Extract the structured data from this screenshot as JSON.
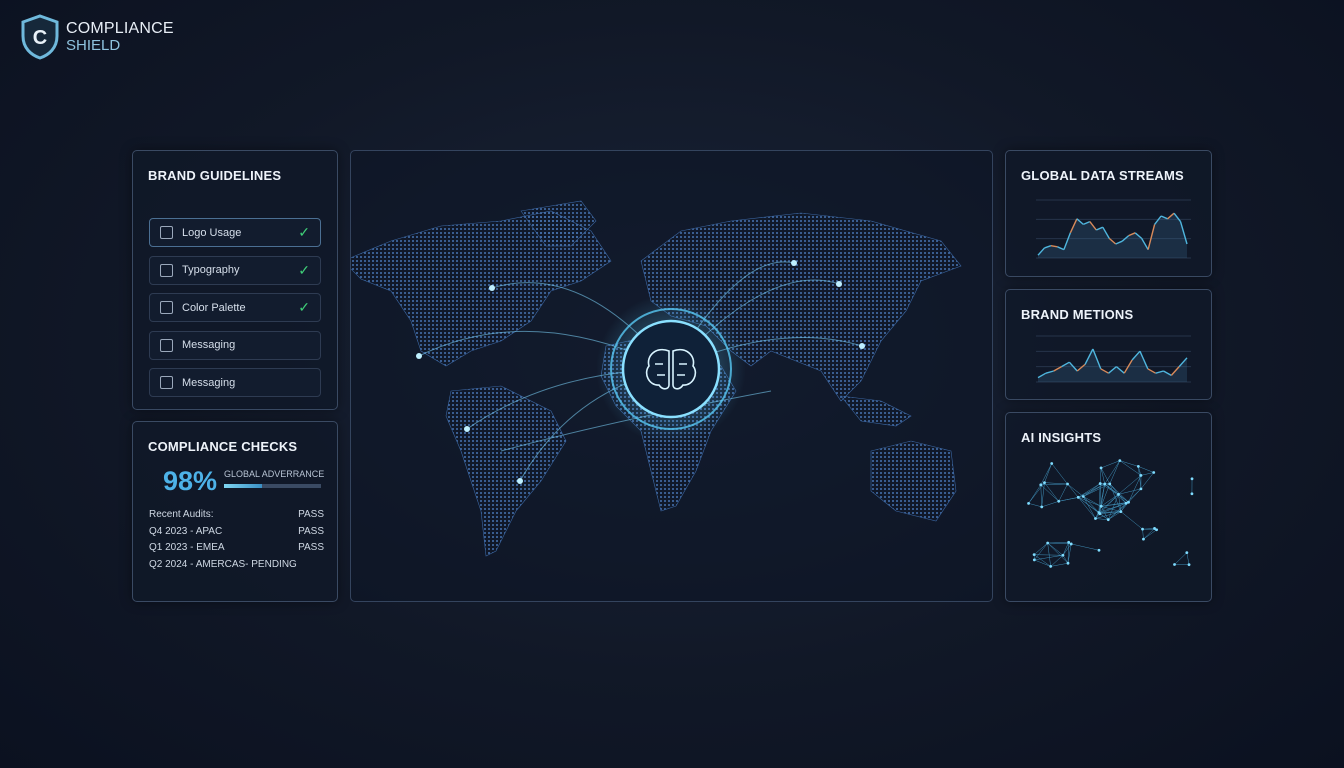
{
  "logo": {
    "line1": "COMPLIANCE",
    "line2": "SHIELD",
    "glyph": "C"
  },
  "brand_guidelines": {
    "title": "BRAND GUIDELINES",
    "items": [
      {
        "label": "Logo Usage",
        "icon": "image-icon",
        "checked": true
      },
      {
        "label": "Typography",
        "icon": "text-icon",
        "checked": true
      },
      {
        "label": "Color Palette",
        "icon": "palette-icon",
        "checked": true
      },
      {
        "label": "Messaging",
        "icon": "message-icon",
        "checked": false
      },
      {
        "label": "Messaging",
        "icon": "message-icon",
        "checked": false
      }
    ]
  },
  "compliance": {
    "title": "COMPLIANCE CHECKS",
    "percent": "98%",
    "percent_value": 98,
    "metric_label": "GLOBAL ADVERRANCE",
    "audits": [
      {
        "label": "Recent Audits:",
        "status": "PASS"
      },
      {
        "label": "Q4 2023 - APAC",
        "status": "PASS"
      },
      {
        "label": "Q1 2023 - EMEA",
        "status": "PASS"
      },
      {
        "label": "Q2 2024 - AMERCAS- PENDING",
        "status": ""
      }
    ]
  },
  "streams": {
    "title": "GLOBAL DATA STREAMS"
  },
  "mentions": {
    "title": "BRAND METIONS"
  },
  "insights": {
    "title": "AI INSIGHTS"
  },
  "colors": {
    "accent": "#4db2e8",
    "check": "#3fcf78",
    "line_blue": "#4fb6de",
    "line_orange": "#d88a5a"
  },
  "chart_data": [
    {
      "type": "line",
      "title": "GLOBAL DATA STREAMS",
      "values": [
        5,
        18,
        22,
        20,
        15,
        45,
        70,
        60,
        65,
        50,
        55,
        35,
        25,
        30,
        40,
        45,
        35,
        15,
        60,
        75,
        70,
        80,
        65,
        25
      ]
    },
    {
      "type": "line",
      "title": "BRAND METIONS",
      "values": [
        10,
        20,
        25,
        35,
        45,
        25,
        40,
        75,
        30,
        20,
        35,
        20,
        50,
        70,
        30,
        20,
        25,
        15,
        35,
        55
      ]
    }
  ]
}
